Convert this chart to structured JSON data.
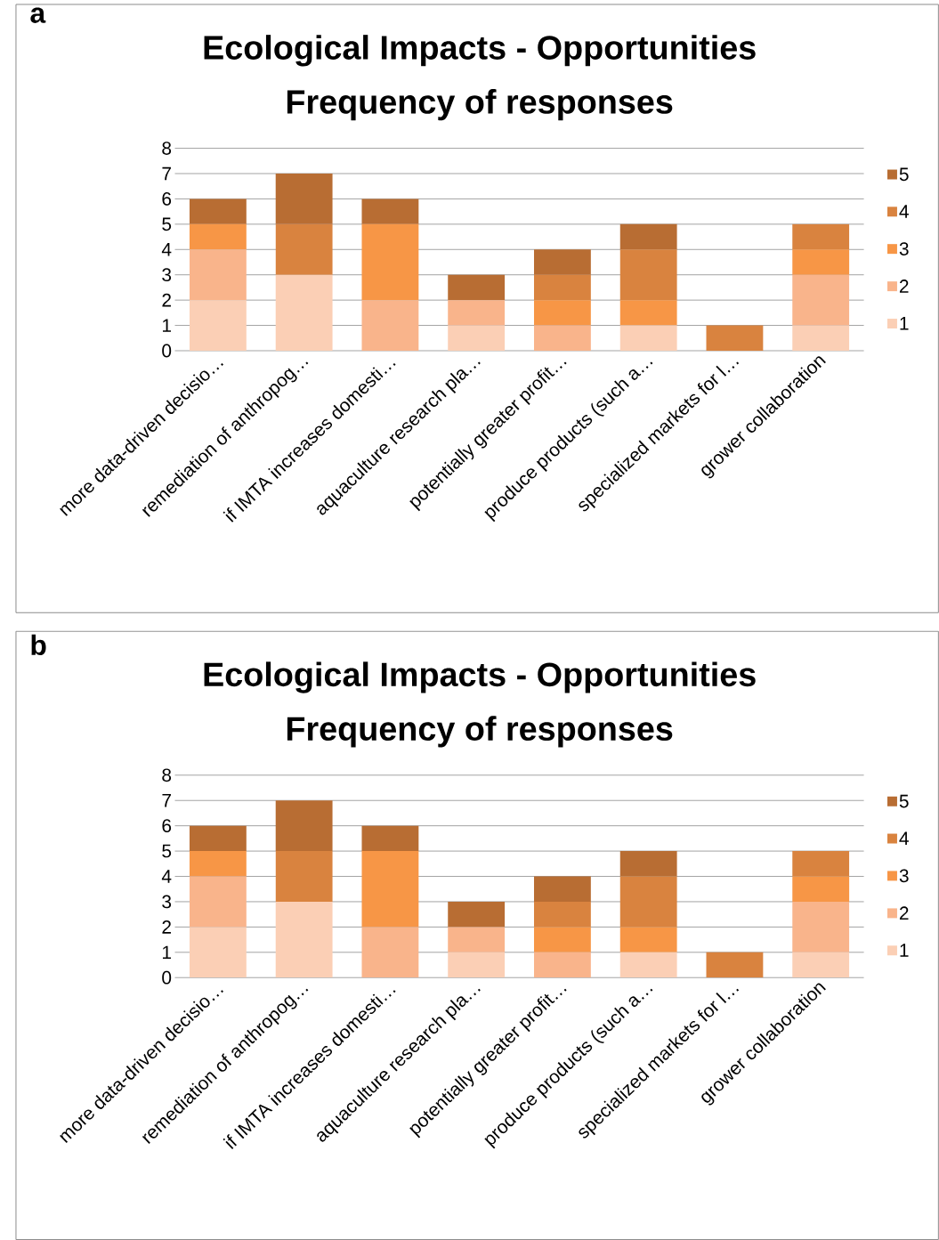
{
  "chart_data": [
    {
      "type": "bar",
      "stacked": true,
      "title": "Ecological  Impacts - Opportunities",
      "subtitle": "Frequency of responses",
      "annotations": [
        "a"
      ],
      "categories": [
        "more data-driven decisio…",
        "remediation of anthropog…",
        "if IMTA increases domesti…",
        "aquaculture research pla…",
        "potentially greater profit…",
        "produce products (such a…",
        "specialized markets for l…",
        "grower collaboration"
      ],
      "series": [
        {
          "name": "1",
          "color": "#fbcfb5",
          "values": [
            2,
            3,
            0,
            1,
            0,
            1,
            0,
            1
          ]
        },
        {
          "name": "2",
          "color": "#f9b48b",
          "values": [
            2,
            0,
            2,
            1,
            1,
            0,
            0,
            2
          ]
        },
        {
          "name": "3",
          "color": "#f79646",
          "values": [
            1,
            0,
            3,
            0,
            1,
            1,
            0,
            1
          ]
        },
        {
          "name": "4",
          "color": "#d9833f",
          "values": [
            0,
            2,
            0,
            0,
            1,
            2,
            1,
            1
          ]
        },
        {
          "name": "5",
          "color": "#b86d33",
          "values": [
            1,
            2,
            1,
            1,
            1,
            1,
            0,
            0
          ]
        }
      ],
      "ylim": [
        0,
        8
      ],
      "yticks": [
        0,
        1,
        2,
        3,
        4,
        5,
        6,
        7,
        8
      ],
      "grid": "y",
      "legend": "right"
    },
    {
      "type": "bar",
      "stacked": true,
      "title": "Ecological  Impacts - Opportunities",
      "subtitle": "Frequency of responses",
      "annotations": [
        "b"
      ],
      "categories": [
        "more data-driven decisio…",
        "remediation of anthropog…",
        "if IMTA increases domesti…",
        "aquaculture research pla…",
        "potentially greater profit…",
        "produce products (such a…",
        "specialized markets for l…",
        "grower collaboration"
      ],
      "series": [
        {
          "name": "1",
          "color": "#fbcfb5",
          "values": [
            2,
            3,
            0,
            1,
            0,
            1,
            0,
            1
          ]
        },
        {
          "name": "2",
          "color": "#f9b48b",
          "values": [
            2,
            0,
            2,
            1,
            1,
            0,
            0,
            2
          ]
        },
        {
          "name": "3",
          "color": "#f79646",
          "values": [
            1,
            0,
            3,
            0,
            1,
            1,
            0,
            1
          ]
        },
        {
          "name": "4",
          "color": "#d9833f",
          "values": [
            0,
            2,
            0,
            0,
            1,
            2,
            1,
            1
          ]
        },
        {
          "name": "5",
          "color": "#b86d33",
          "values": [
            1,
            2,
            1,
            1,
            1,
            1,
            0,
            0
          ]
        }
      ],
      "ylim": [
        0,
        8
      ],
      "yticks": [
        0,
        1,
        2,
        3,
        4,
        5,
        6,
        7,
        8
      ],
      "grid": "y",
      "legend": "right"
    }
  ]
}
